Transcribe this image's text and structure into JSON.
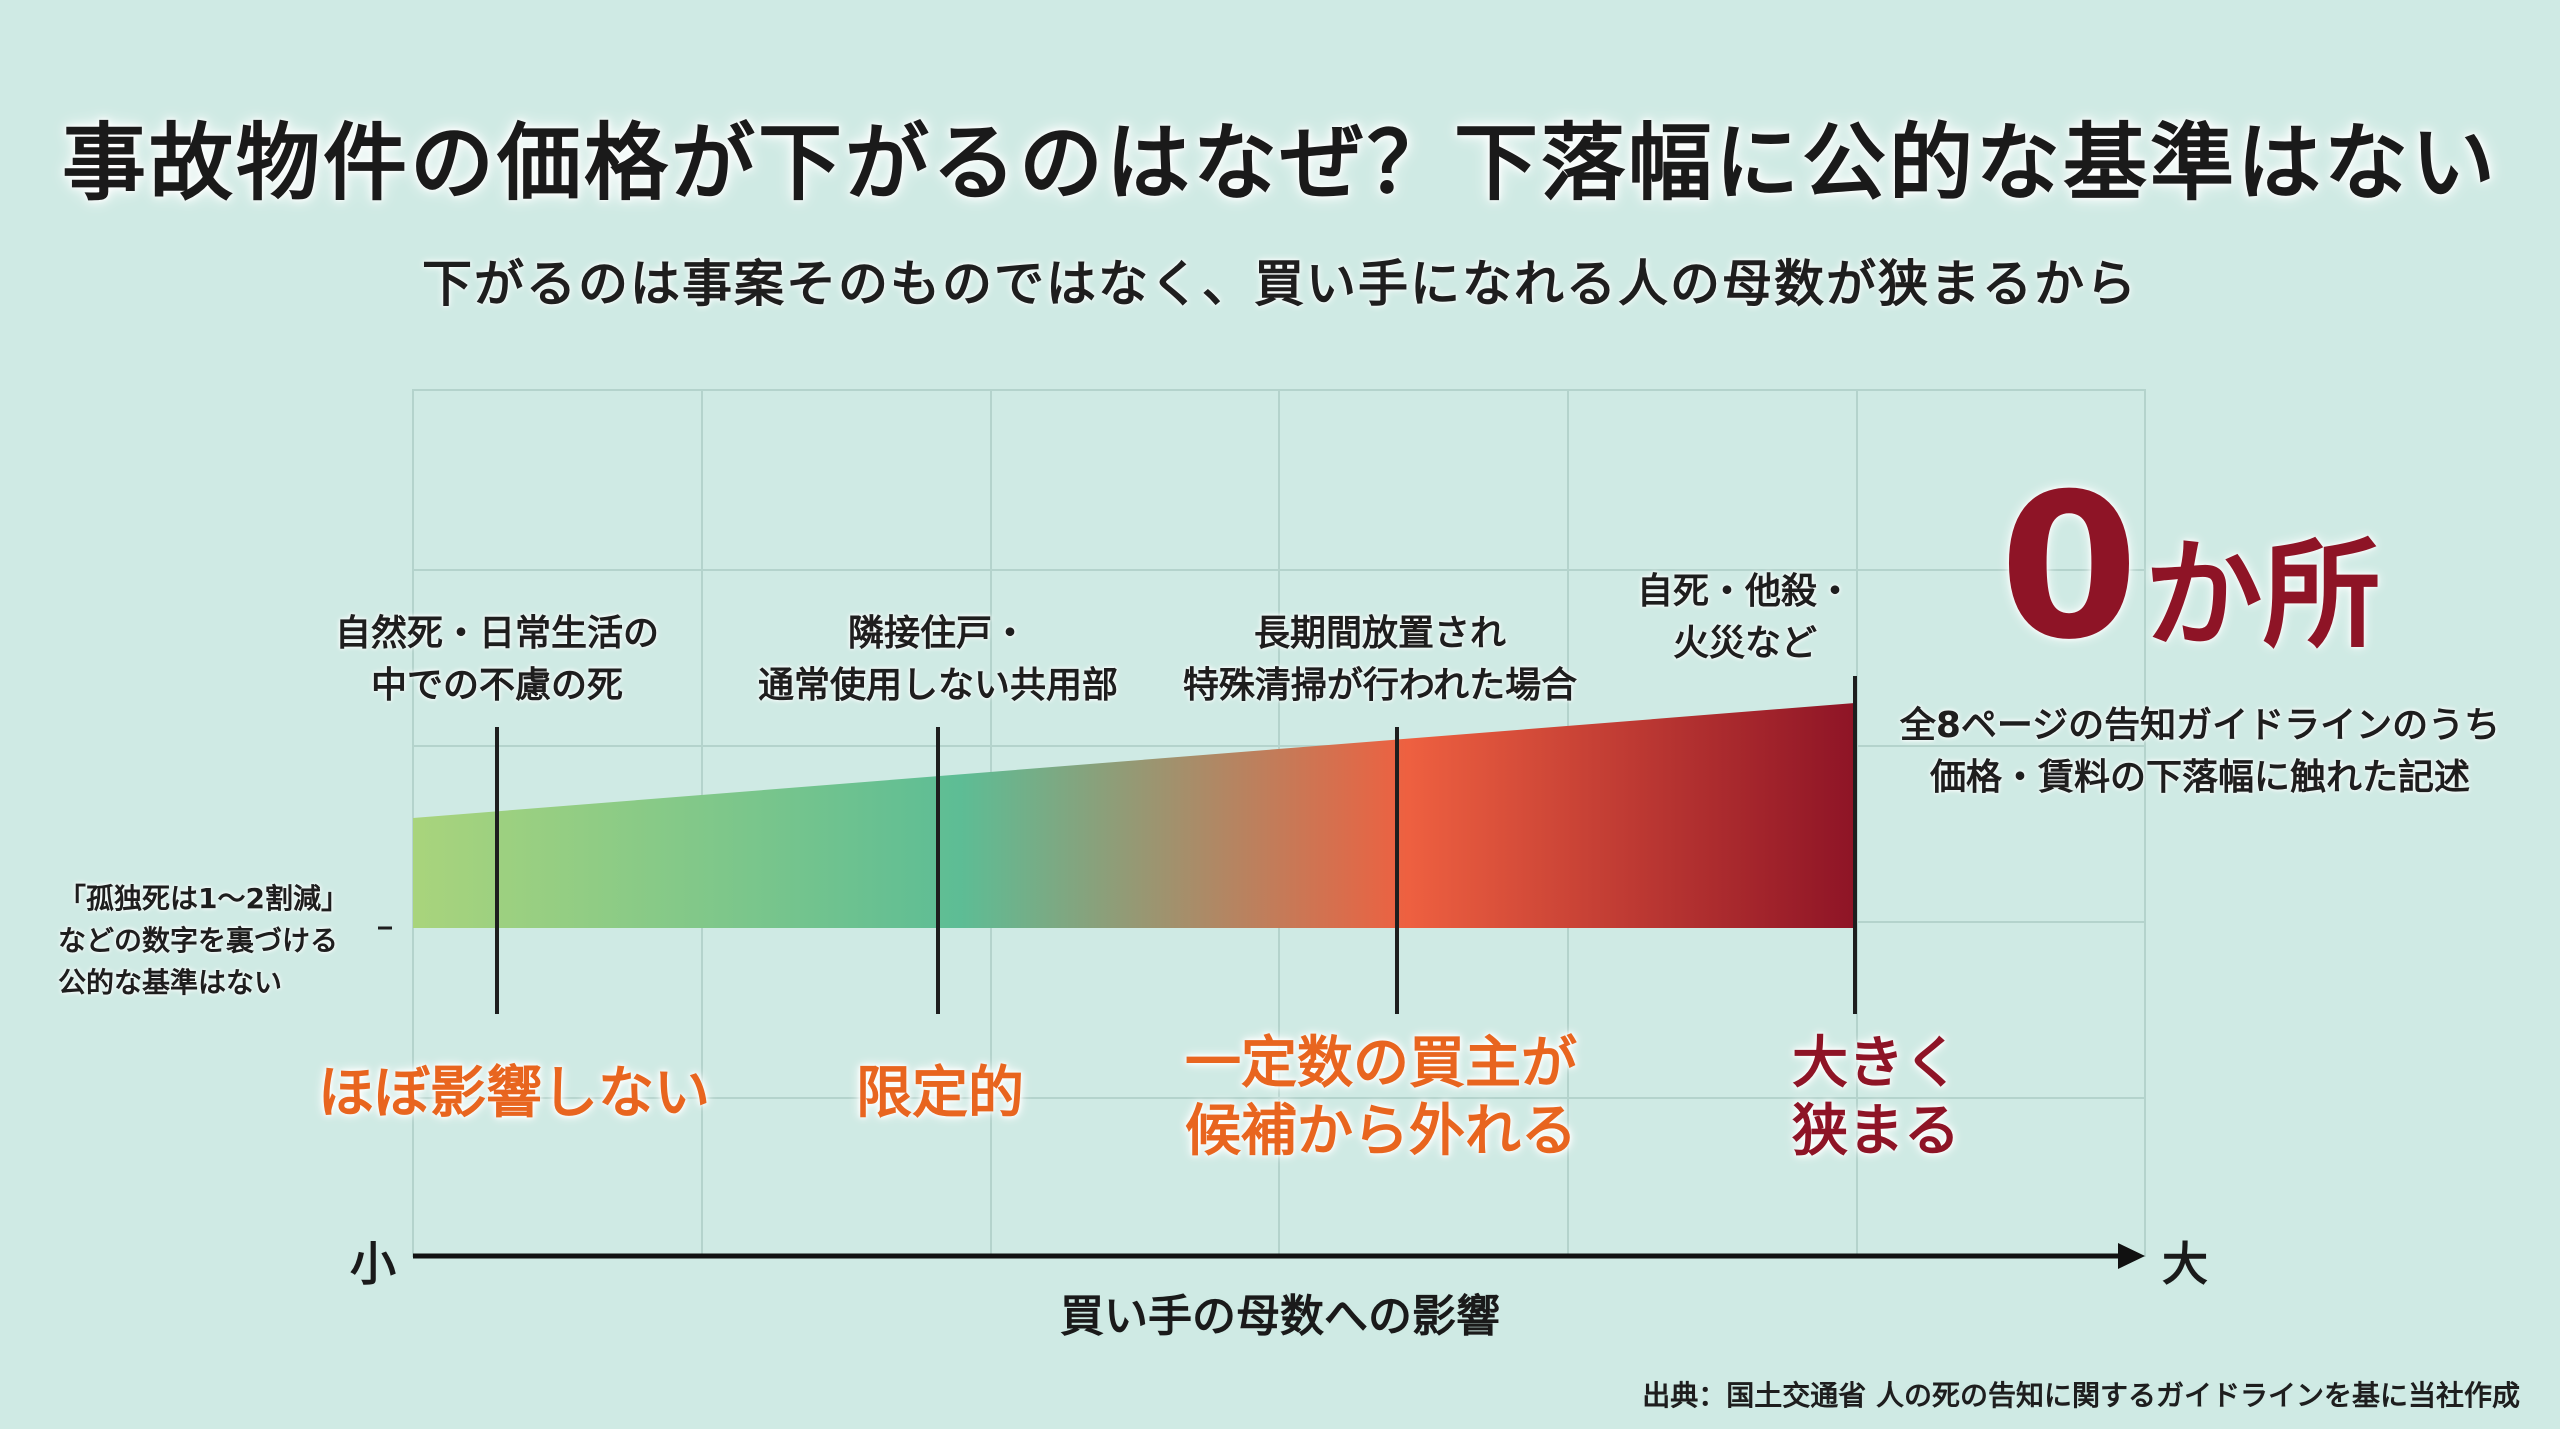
{
  "title": "事故物件の価格が下がるのはなぜ？下落幅に公的な基準はない",
  "subtitle": "下がるのは事案そのものではなく、買い手になれる人の母数が狭まるから",
  "categories": [
    {
      "case": "自然死・日常生活の\n中での不慮の死",
      "impact": "ほぼ影響しない",
      "impact_level": 1,
      "impact_color": "#e8651f"
    },
    {
      "case": "隣接住戸・\n通常使用しない共用部",
      "impact": "限定的",
      "impact_level": 2,
      "impact_color": "#e8651f"
    },
    {
      "case": "長期間放置され\n特殊清掃が行われた場合",
      "impact": "一定数の買主が\n候補から外れる",
      "impact_level": 3,
      "impact_color": "#e8651f"
    },
    {
      "case": "自死・他殺・\n火災など",
      "impact": "大きく\n狭まる",
      "impact_level": 4,
      "impact_color": "#8e1426"
    }
  ],
  "left_note": "「孤独死は1〜2割減」\nなどの数字を裏づける\n公的な基準はない",
  "highlight": {
    "value": "0",
    "unit": "か所",
    "caption": "全8ページの告知ガイドラインのうち\n価格・賃料の下落幅に触れた記述"
  },
  "axis": {
    "low": "小",
    "high": "大",
    "title": "買い手の母数への影響"
  },
  "source": "出典：国土交通省 人の死の告知に関するガイドラインを基に当社作成",
  "colors": {
    "background": "#cfeae4",
    "gradient": [
      "#a9d47c",
      "#5dbd95",
      "#ee6040",
      "#8e1426"
    ],
    "accent_orange": "#e8651f",
    "accent_crimson": "#8e1426"
  }
}
